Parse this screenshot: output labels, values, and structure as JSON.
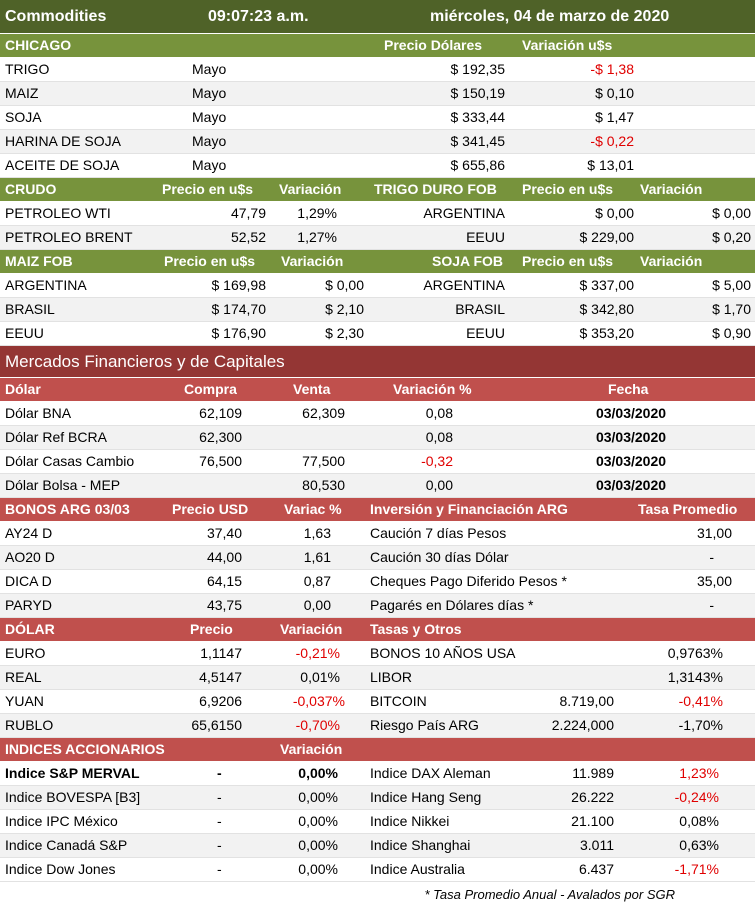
{
  "header": {
    "title": "Commodities",
    "time": "09:07:23 a.m.",
    "date": "miércoles, 04 de marzo de 2020"
  },
  "chicago": {
    "headers": [
      "CHICAGO",
      "Precio Dólares",
      "Variación u$s"
    ],
    "rows": [
      [
        "TRIGO",
        "Mayo",
        "$ 192,35",
        "-$ 1,38"
      ],
      [
        "MAIZ",
        "Mayo",
        "$ 150,19",
        "$ 0,10"
      ],
      [
        "SOJA",
        "Mayo",
        "$ 333,44",
        "$ 1,47"
      ],
      [
        "HARINA DE SOJA",
        "Mayo",
        "$ 341,45",
        "-$ 0,22"
      ],
      [
        "ACEITE DE SOJA",
        "Mayo",
        "$ 655,86",
        "$ 13,01"
      ]
    ]
  },
  "crudo": {
    "headers": [
      "CRUDO",
      "Precio en u$s",
      "Variación",
      "TRIGO DURO FOB",
      "Precio en u$s",
      "Variación"
    ],
    "rows": [
      [
        "PETROLEO WTI",
        "47,79",
        "1,29%",
        "ARGENTINA",
        "$ 0,00",
        "$ 0,00"
      ],
      [
        "PETROLEO BRENT",
        "52,52",
        "1,27%",
        "EEUU",
        "$ 229,00",
        "$ 0,20"
      ]
    ]
  },
  "maiz_fob": {
    "headers": [
      "MAIZ FOB",
      "Precio en u$s",
      "Variación",
      "SOJA FOB",
      "Precio en u$s",
      "Variación"
    ],
    "rows": [
      [
        "ARGENTINA",
        "$ 169,98",
        "$ 0,00",
        "ARGENTINA",
        "$ 337,00",
        "$ 5,00"
      ],
      [
        "BRASIL",
        "$ 174,70",
        "$ 2,10",
        "BRASIL",
        "$ 342,80",
        "$ 1,70"
      ],
      [
        "EEUU",
        "$ 176,90",
        "$ 2,30",
        "EEUU",
        "$ 353,20",
        "$ 0,90"
      ]
    ]
  },
  "financieros": {
    "title": "Mercados Financieros y de Capitales"
  },
  "dolar_local": {
    "headers": [
      "Dólar",
      "Compra",
      "Venta",
      "Variación %",
      "Fecha"
    ],
    "rows": [
      [
        "Dólar BNA",
        "62,109",
        "62,309",
        "0,08",
        "03/03/2020"
      ],
      [
        "Dólar Ref BCRA",
        "62,300",
        "",
        "0,08",
        "03/03/2020"
      ],
      [
        "Dólar Casas Cambio",
        "76,500",
        "77,500",
        "-0,32",
        "03/03/2020"
      ],
      [
        "Dólar Bolsa - MEP",
        "",
        "80,530",
        "0,00",
        "03/03/2020"
      ]
    ]
  },
  "bonos": {
    "headers": [
      "BONOS  ARG  03/03",
      "Precio USD",
      "Variac %",
      "Inversión y Financiación ARG",
      "Tasa Promedio"
    ],
    "rows": [
      [
        "AY24 D",
        "37,40",
        "1,63",
        "Caución 7 días Pesos",
        "31,00"
      ],
      [
        "AO20 D",
        "44,00",
        "1,61",
        "Caución 30 días Dólar",
        "-"
      ],
      [
        "DICA D",
        "64,15",
        "0,87",
        "Cheques Pago Diferido Pesos *",
        "35,00"
      ],
      [
        "PARYD",
        "43,75",
        "0,00",
        "Pagarés en Dólares días *",
        "-"
      ]
    ]
  },
  "dolar_int": {
    "headers": [
      "DÓLAR",
      "Precio",
      "Variación",
      "Tasas y Otros"
    ],
    "rows": [
      [
        "EURO",
        "1,1147",
        "-0,21%",
        "BONOS 10 AÑOS USA",
        "",
        "0,9763%"
      ],
      [
        "REAL",
        "4,5147",
        "0,01%",
        "LIBOR",
        "",
        "1,3143%"
      ],
      [
        "YUAN",
        "6,9206",
        "-0,037%",
        "BITCOIN",
        "8.719,00",
        "-0,41%"
      ],
      [
        "RUBLO",
        "65,6150",
        "-0,70%",
        "Riesgo País ARG",
        "2.224,000",
        "-1,70%"
      ]
    ]
  },
  "indices": {
    "headers": [
      "INDICES ACCIONARIOS",
      "Variación"
    ],
    "rows": [
      [
        "Indice S&P MERVAL",
        "-",
        "0,00%",
        "Indice DAX Aleman",
        "11.989",
        "1,23%"
      ],
      [
        "Indice BOVESPA [B3]",
        "-",
        "0,00%",
        "Indice Hang Seng",
        "26.222",
        "-0,24%"
      ],
      [
        "Indice IPC México",
        "-",
        "0,00%",
        "Indice Nikkei",
        "21.100",
        "0,08%"
      ],
      [
        "Indice Canadá S&P",
        "-",
        "0,00%",
        "Indice Shanghai",
        "3.011",
        "0,63%"
      ],
      [
        "Indice Dow Jones",
        "-",
        "0,00%",
        "Indice Australia",
        "6.437",
        "-1,71%"
      ]
    ]
  },
  "footnote": "* Tasa Promedio Anual - Avalados por SGR",
  "colors": {
    "top_bar": "#4f6228",
    "green_header": "#77933c",
    "dark_red": "#943634",
    "red_header": "#c0504d",
    "negative": "#e00000",
    "alt_row": "#f2f2f2"
  }
}
